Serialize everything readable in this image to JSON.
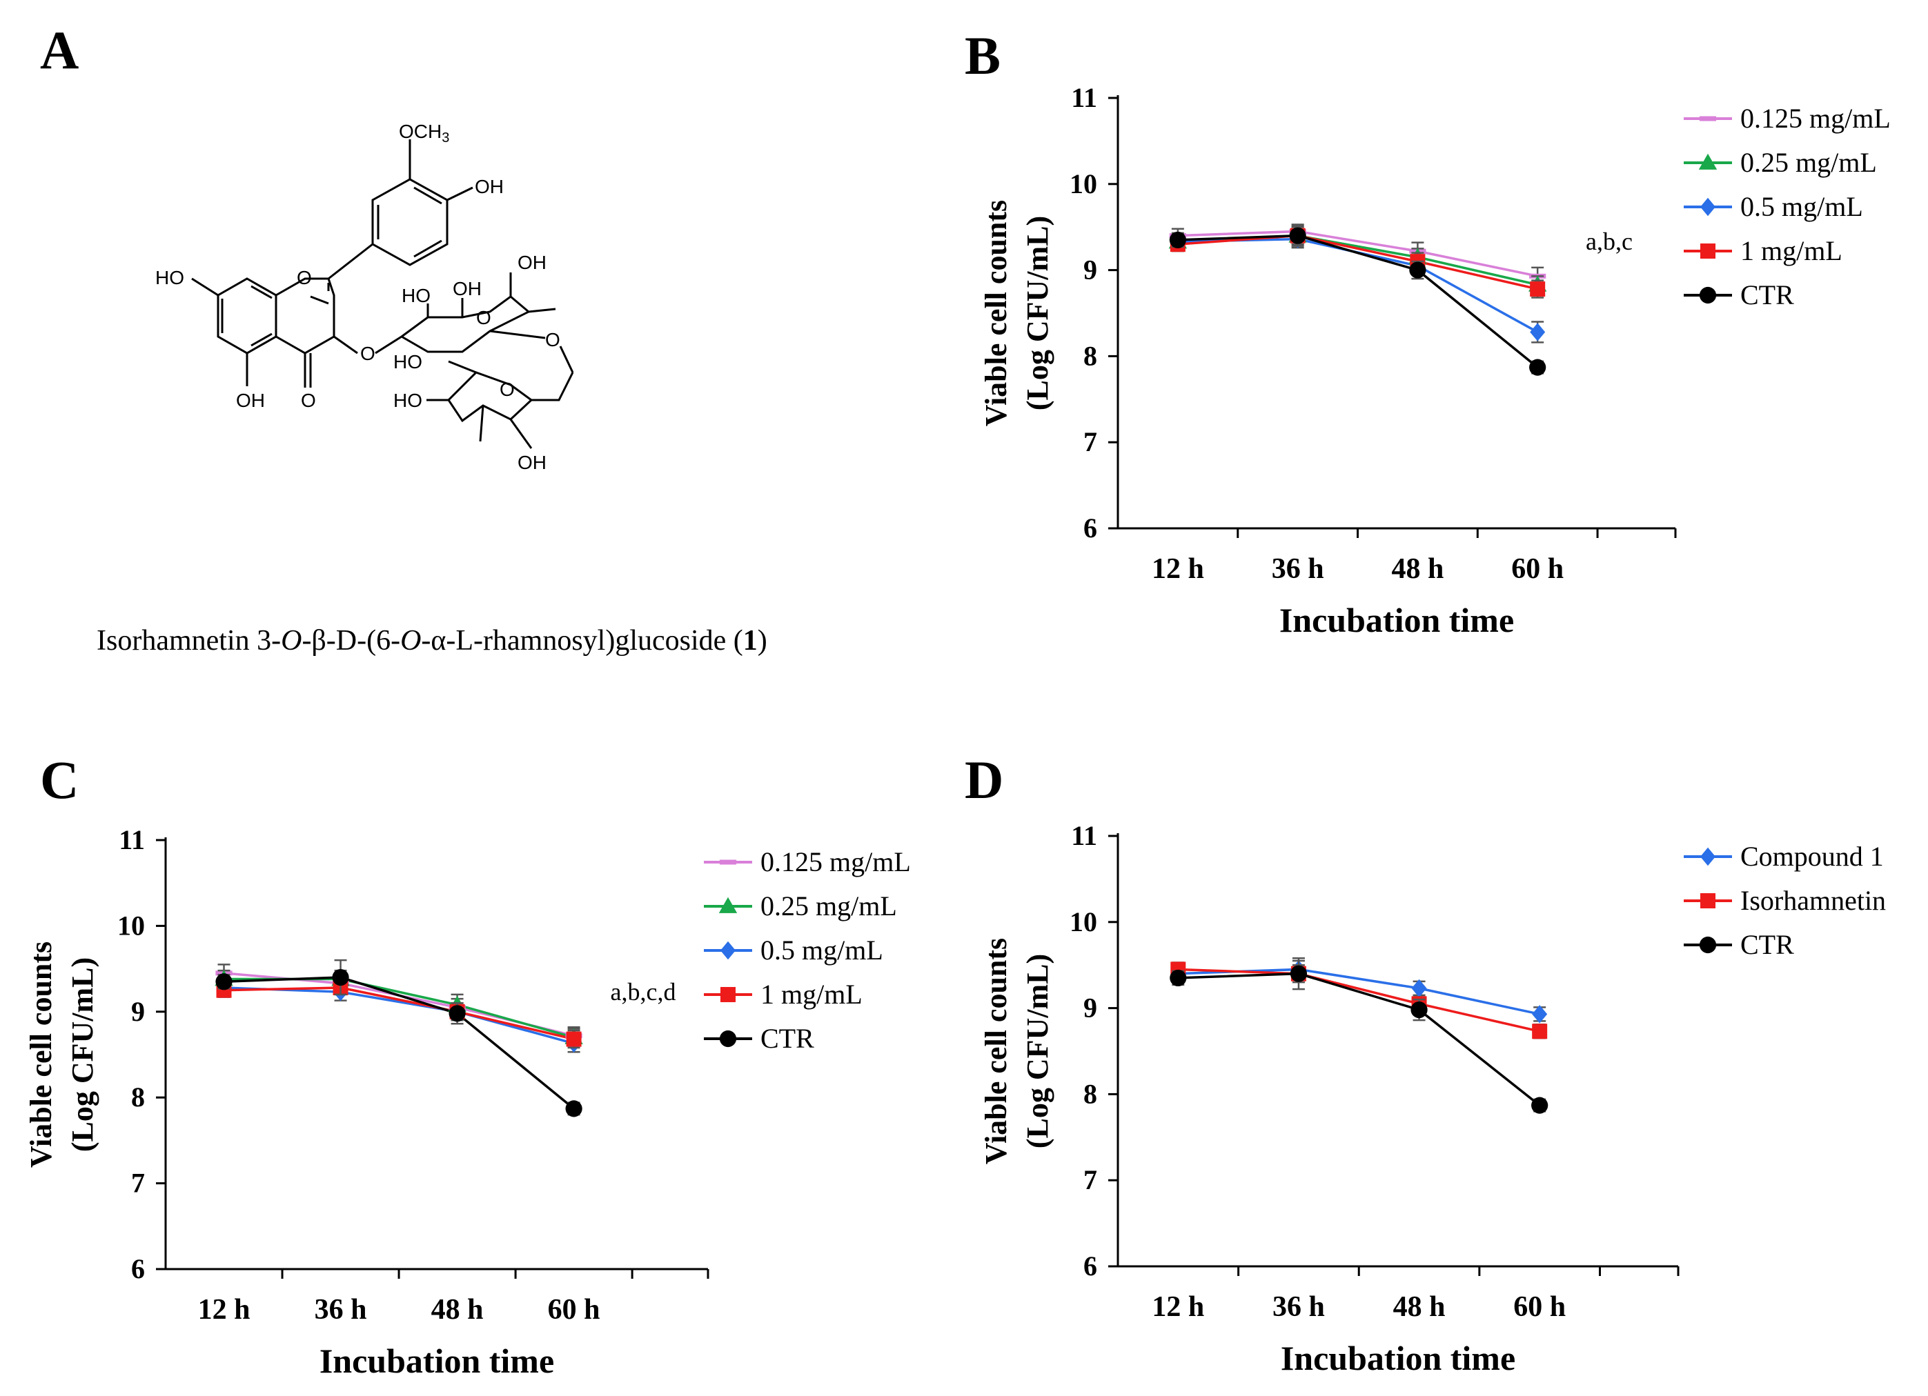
{
  "panel_labels": {
    "a": "A",
    "b": "B",
    "c": "C",
    "d": "D"
  },
  "molecule": {
    "labels": {
      "och3": "OCH3",
      "oh_4prime": "OH",
      "ho_7": "HO",
      "ring_o": "O",
      "oh_5": "OH",
      "carbonyl_o": "O",
      "glc_oh_a": "OH",
      "glc_ho_b": "HO",
      "glc_oh_c": "OH",
      "glc_ring_o": "O",
      "link_o_3": "O",
      "link_o_6": "O",
      "rha_ring_o": "O",
      "rha_ho_a": "HO",
      "rha_ho_b": "HO",
      "rha_oh_c": "OH"
    },
    "caption": {
      "p1": "Isorhamnetin 3-",
      "o1": "O",
      "p2": "-β-D-(6-",
      "o2": "O",
      "p3": "-α-L-rhamnosyl)glucoside (",
      "num": "1",
      "p4": ")"
    }
  },
  "colors": {
    "pink": "#d980d9",
    "green": "#19a84a",
    "blue": "#2a6fe8",
    "red": "#ee1b1b",
    "black": "#000000"
  },
  "chart_data": [
    {
      "panel": "B",
      "type": "line",
      "categories": [
        "12 h",
        "36 h",
        "48 h",
        "60 h"
      ],
      "xlabel": "Incubation time",
      "ylabel_line1": "Viable cell counts",
      "ylabel_line2": "(Log CFU/mL)",
      "ylim": [
        6,
        11
      ],
      "yticks": [
        6,
        7,
        8,
        9,
        10,
        11
      ],
      "annotation": "a,b,c",
      "series": [
        {
          "name": "0.125 mg/mL",
          "marker": "dash",
          "color": "#d980d9",
          "values": [
            9.4,
            9.45,
            9.22,
            8.93
          ],
          "err": [
            0.08,
            0.08,
            0.1,
            0.1
          ]
        },
        {
          "name": "0.25 mg/mL",
          "marker": "triangle",
          "color": "#19a84a",
          "values": [
            9.33,
            9.4,
            9.15,
            8.83
          ],
          "err": [
            0.08,
            0.1,
            0.1,
            0.1
          ]
        },
        {
          "name": "0.5 mg/mL",
          "marker": "diamond",
          "color": "#2a6fe8",
          "values": [
            9.33,
            9.36,
            9.05,
            8.28
          ],
          "err": [
            0.08,
            0.1,
            0.1,
            0.12
          ]
        },
        {
          "name": "1 mg/mL",
          "marker": "square",
          "color": "#ee1b1b",
          "values": [
            9.3,
            9.4,
            9.1,
            8.78
          ],
          "err": [
            0.08,
            0.1,
            0.1,
            0.1
          ]
        },
        {
          "name": "CTR",
          "marker": "circle",
          "color": "#000000",
          "values": [
            9.35,
            9.4,
            9.0,
            7.87
          ],
          "err": [
            0.08,
            0.12,
            0.1,
            0.07
          ]
        }
      ]
    },
    {
      "panel": "C",
      "type": "line",
      "categories": [
        "12 h",
        "36 h",
        "48 h",
        "60 h"
      ],
      "xlabel": "Incubation time",
      "ylabel_line1": "Viable cell counts",
      "ylabel_line2": "(Log CFU/mL)",
      "ylim": [
        6,
        11
      ],
      "yticks": [
        6,
        7,
        8,
        9,
        10,
        11
      ],
      "annotation": "a,b,c,d",
      "series": [
        {
          "name": "0.125 mg/mL",
          "marker": "dash",
          "color": "#d980d9",
          "values": [
            9.45,
            9.33,
            9.05,
            8.72
          ],
          "err": [
            0.1,
            0.1,
            0.1,
            0.1
          ]
        },
        {
          "name": "0.25 mg/mL",
          "marker": "triangle",
          "color": "#19a84a",
          "values": [
            9.38,
            9.38,
            9.08,
            8.7
          ],
          "err": [
            0.1,
            0.1,
            0.12,
            0.1
          ]
        },
        {
          "name": "0.5 mg/mL",
          "marker": "diamond",
          "color": "#2a6fe8",
          "values": [
            9.28,
            9.23,
            9.0,
            8.63
          ],
          "err": [
            0.1,
            0.1,
            0.1,
            0.1
          ]
        },
        {
          "name": "1 mg/mL",
          "marker": "square",
          "color": "#ee1b1b",
          "values": [
            9.25,
            9.28,
            9.0,
            8.68
          ],
          "err": [
            0.08,
            0.08,
            0.1,
            0.1
          ]
        },
        {
          "name": "CTR",
          "marker": "circle",
          "color": "#000000",
          "values": [
            9.35,
            9.4,
            8.98,
            7.87
          ],
          "err": [
            0.08,
            0.2,
            0.12,
            0.07
          ]
        }
      ]
    },
    {
      "panel": "D",
      "type": "line",
      "categories": [
        "12 h",
        "36 h",
        "48 h",
        "60 h"
      ],
      "xlabel": "Incubation time",
      "ylabel_line1": "Viable cell counts",
      "ylabel_line2": "(Log CFU/mL)",
      "ylim": [
        6,
        11
      ],
      "yticks": [
        6,
        7,
        8,
        9,
        10,
        11
      ],
      "annotation": "",
      "series": [
        {
          "name": "Compound 1",
          "marker": "diamond",
          "color": "#2a6fe8",
          "values": [
            9.4,
            9.45,
            9.23,
            8.93
          ],
          "err": [
            0.08,
            0.1,
            0.08,
            0.08
          ]
        },
        {
          "name": "Isorhamnetin",
          "marker": "square",
          "color": "#ee1b1b",
          "values": [
            9.45,
            9.4,
            9.05,
            8.73
          ],
          "err": [
            0.08,
            0.1,
            0.08,
            0.08
          ]
        },
        {
          "name": "CTR",
          "marker": "circle",
          "color": "#000000",
          "values": [
            9.35,
            9.4,
            8.98,
            7.87
          ],
          "err": [
            0.08,
            0.18,
            0.12,
            0.07
          ]
        }
      ]
    }
  ]
}
